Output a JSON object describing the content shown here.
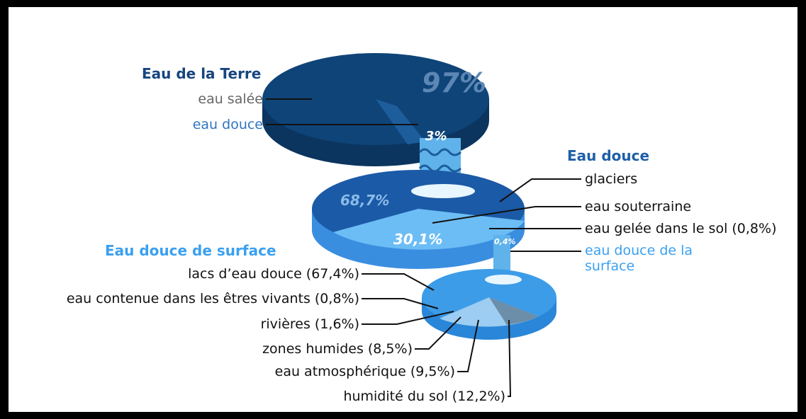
{
  "earth": {
    "title": "Eau de la Terre",
    "labels": [
      "eau salée",
      "eau douce"
    ],
    "pie_labels": [
      "97%",
      "3%"
    ]
  },
  "freshwater": {
    "title": "Eau douce",
    "labels": [
      "glaciers",
      "eau souterraine",
      "eau gelée dans le sol (0,8%)",
      "eau douce de la surface"
    ],
    "pie_labels": [
      "68,7%",
      "30,1%",
      "0,4%"
    ]
  },
  "surface": {
    "title": "Eau douce de surface",
    "labels": [
      "lacs d’eau douce (67,4%)",
      "eau contenue dans les êtres vivants (0,8%)",
      "rivières (1,6%)",
      "zones humides (8,5%)",
      "eau atmosphérique (9,5%)",
      "humidité du sol (12,2%)"
    ]
  }
}
